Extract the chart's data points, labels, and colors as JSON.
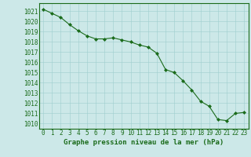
{
  "x": [
    0,
    1,
    2,
    3,
    4,
    5,
    6,
    7,
    8,
    9,
    10,
    11,
    12,
    13,
    14,
    15,
    16,
    17,
    18,
    19,
    20,
    21,
    22,
    23
  ],
  "y": [
    1021.2,
    1020.8,
    1020.4,
    1019.7,
    1019.1,
    1018.6,
    1018.3,
    1018.3,
    1018.4,
    1018.2,
    1018.0,
    1017.7,
    1017.5,
    1016.9,
    1015.3,
    1015.0,
    1014.2,
    1013.3,
    1012.2,
    1011.7,
    1010.4,
    1010.3,
    1011.0,
    1011.1
  ],
  "line_color": "#1a6b1a",
  "marker_color": "#1a6b1a",
  "bg_color": "#cce8e8",
  "grid_color": "#9ecece",
  "xlabel": "Graphe pression niveau de la mer (hPa)",
  "ylim": [
    1009.5,
    1021.8
  ],
  "xlim": [
    -0.5,
    23.5
  ],
  "yticks": [
    1010,
    1011,
    1012,
    1013,
    1014,
    1015,
    1016,
    1017,
    1018,
    1019,
    1020,
    1021
  ],
  "xticks": [
    0,
    1,
    2,
    3,
    4,
    5,
    6,
    7,
    8,
    9,
    10,
    11,
    12,
    13,
    14,
    15,
    16,
    17,
    18,
    19,
    20,
    21,
    22,
    23
  ],
  "tick_color": "#1a6b1a",
  "axis_color": "#1a6b1a",
  "tick_fontsize": 5.5,
  "xlabel_fontsize": 6.5
}
